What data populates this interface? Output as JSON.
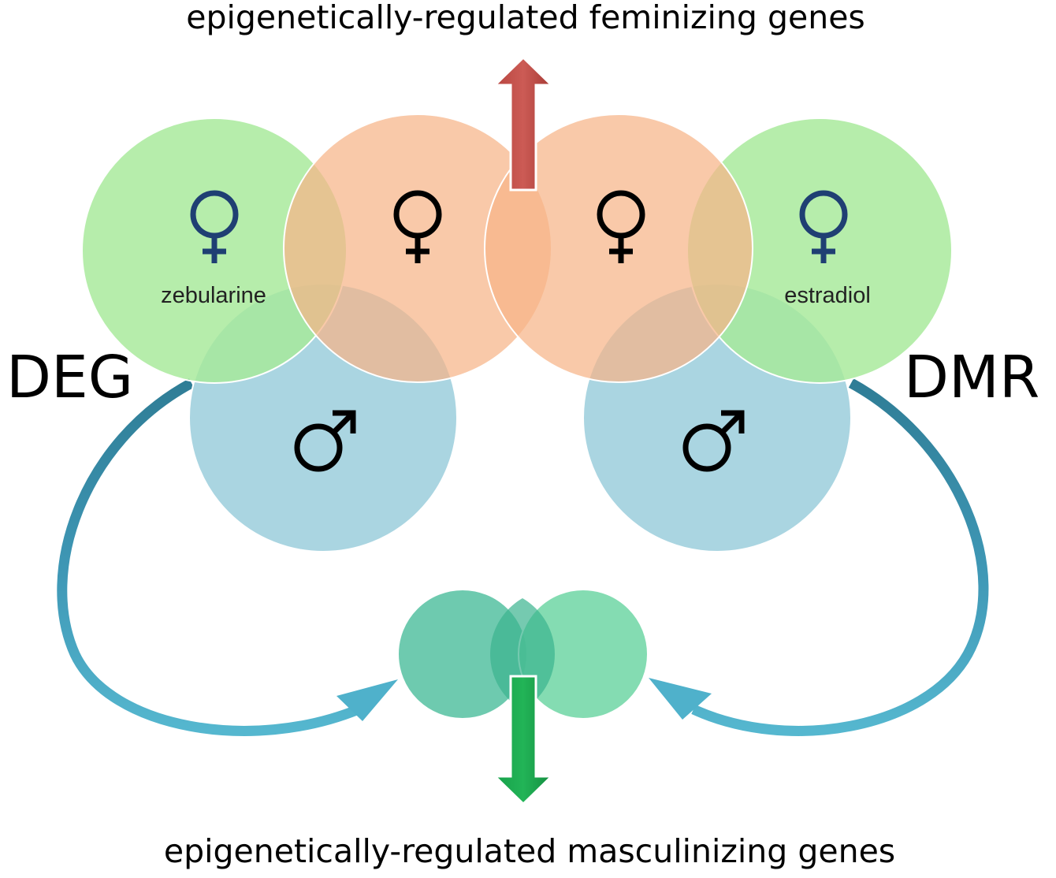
{
  "diagram": {
    "title_top": "epigenetically-regulated feminizing genes",
    "title_bottom": "epigenetically-regulated masculinizing genes",
    "left_label": "DEG",
    "right_label": "DMR",
    "left_treatment_label": "zebularine",
    "right_treatment_label": "estradiol",
    "symbols": {
      "female": "venus-icon",
      "male": "mars-icon"
    },
    "colors": {
      "treatment_circle": "#a6e998",
      "female_circle": "#f6b488",
      "male_circle": "#a1d0de",
      "overlap_circle_left": "#5ec4a6",
      "overlap_circle_right": "#6fd6a5",
      "up_arrow": "#c0504d",
      "down_arrow": "#1aa64a",
      "curve_arrow": "#3a8eaa",
      "female_symbol_treatment": "#1f3f73",
      "symbol_default": "#000000"
    }
  }
}
